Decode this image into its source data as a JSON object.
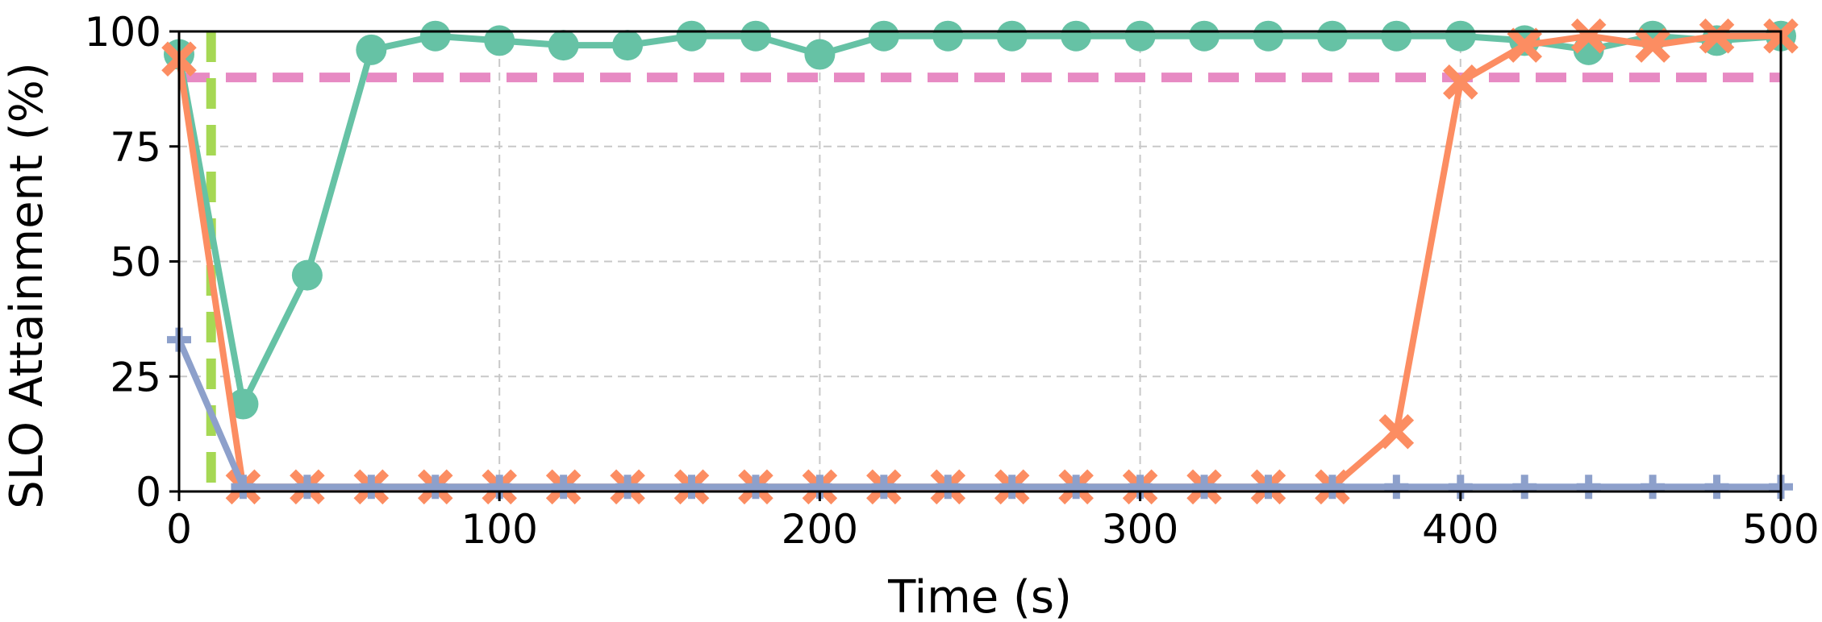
{
  "chart_data": {
    "type": "line",
    "xlabel": "Time (s)",
    "ylabel": "SLO Attainment (%)",
    "xlim": [
      0,
      500
    ],
    "ylim": [
      0,
      100
    ],
    "x_ticks": [
      0,
      100,
      200,
      300,
      400,
      500
    ],
    "y_ticks": [
      0,
      25,
      50,
      75,
      100
    ],
    "grid": true,
    "series": [
      {
        "marker": "circle",
        "color": "#66c2a5",
        "x": [
          0,
          20,
          40,
          60,
          80,
          100,
          120,
          140,
          160,
          180,
          200,
          220,
          240,
          260,
          280,
          300,
          320,
          340,
          360,
          380,
          400,
          420,
          440,
          460,
          480,
          500
        ],
        "y": [
          95,
          19,
          47,
          96,
          99,
          98,
          97,
          97,
          99,
          99,
          95,
          99,
          99,
          99,
          99,
          99,
          99,
          99,
          99,
          99,
          99,
          98,
          96,
          99,
          98,
          99
        ]
      },
      {
        "marker": "x",
        "color": "#fc8d62",
        "x": [
          0,
          20,
          40,
          60,
          80,
          100,
          120,
          140,
          160,
          180,
          200,
          220,
          240,
          260,
          280,
          300,
          320,
          340,
          360,
          380,
          400,
          420,
          440,
          460,
          480,
          500
        ],
        "y": [
          94,
          1,
          1,
          1,
          1,
          1,
          1,
          1,
          1,
          1,
          1,
          1,
          1,
          1,
          1,
          1,
          1,
          1,
          1,
          13,
          89,
          97,
          99,
          97,
          99,
          99
        ]
      },
      {
        "marker": "plus",
        "color": "#8da0cb",
        "x": [
          0,
          20,
          40,
          60,
          80,
          100,
          120,
          140,
          160,
          180,
          200,
          220,
          240,
          260,
          280,
          300,
          320,
          340,
          360,
          380,
          400,
          420,
          440,
          460,
          480,
          500
        ],
        "y": [
          33,
          1,
          1,
          1,
          1,
          1,
          1,
          1,
          1,
          1,
          1,
          1,
          1,
          1,
          1,
          1,
          1,
          1,
          1,
          1,
          1,
          1,
          1,
          1,
          1,
          1
        ]
      }
    ],
    "reference_lines": [
      {
        "orientation": "horizontal",
        "value": 90,
        "color": "#e78ac3",
        "style": "dashed"
      },
      {
        "orientation": "vertical",
        "value": 10,
        "color": "#a6d854",
        "style": "dashed"
      }
    ]
  }
}
